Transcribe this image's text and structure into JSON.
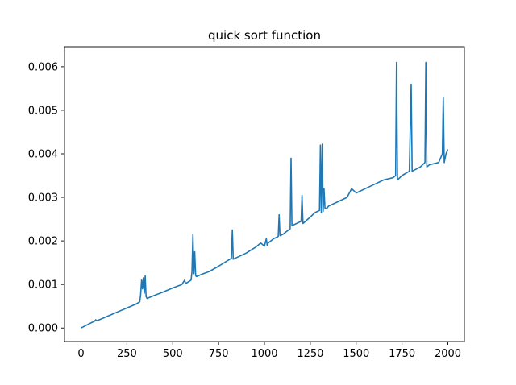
{
  "chart_data": {
    "type": "line",
    "title": "quick sort function",
    "xlabel": "",
    "ylabel": "",
    "xlim": [
      -90,
      2090
    ],
    "ylim": [
      -0.00031,
      0.00646
    ],
    "grid": false,
    "x_ticks": [
      0,
      250,
      500,
      750,
      1000,
      1250,
      1500,
      1750,
      2000
    ],
    "x_tick_labels": [
      "0",
      "250",
      "500",
      "750",
      "1000",
      "1250",
      "1500",
      "1750",
      "2000"
    ],
    "y_ticks": [
      0.0,
      0.001,
      0.002,
      0.003,
      0.004,
      0.005,
      0.006
    ],
    "y_tick_labels": [
      "0.000",
      "0.001",
      "0.002",
      "0.003",
      "0.004",
      "0.005",
      "0.006"
    ],
    "series": [
      {
        "color": "#1f77b4",
        "x": [
          0,
          50,
          75,
          80,
          85,
          100,
          150,
          200,
          250,
          300,
          320,
          325,
          330,
          335,
          340,
          345,
          350,
          355,
          360,
          400,
          450,
          500,
          550,
          565,
          570,
          600,
          605,
          610,
          615,
          620,
          625,
          630,
          650,
          700,
          750,
          800,
          820,
          825,
          830,
          840,
          900,
          950,
          980,
          1000,
          1010,
          1015,
          1020,
          1050,
          1075,
          1080,
          1085,
          1100,
          1140,
          1145,
          1150,
          1175,
          1200,
          1205,
          1210,
          1250,
          1275,
          1300,
          1305,
          1310,
          1315,
          1320,
          1325,
          1330,
          1340,
          1350,
          1400,
          1450,
          1475,
          1500,
          1550,
          1600,
          1650,
          1700,
          1715,
          1720,
          1725,
          1750,
          1790,
          1800,
          1805,
          1850,
          1875,
          1880,
          1885,
          1900,
          1950,
          1970,
          1975,
          1980,
          1990,
          2000
        ],
        "y": [
          0.0,
          0.00011,
          0.00016,
          0.00019,
          0.00017,
          0.00019,
          0.00028,
          0.00037,
          0.00046,
          0.00055,
          0.0006,
          0.00075,
          0.0011,
          0.0009,
          0.00115,
          0.0008,
          0.0012,
          0.00072,
          0.00068,
          0.00075,
          0.00083,
          0.00092,
          0.001,
          0.0011,
          0.00102,
          0.0011,
          0.0013,
          0.00215,
          0.00125,
          0.00175,
          0.0012,
          0.00118,
          0.00122,
          0.0013,
          0.00142,
          0.00155,
          0.0016,
          0.00225,
          0.00158,
          0.0016,
          0.00172,
          0.00185,
          0.00195,
          0.00188,
          0.00205,
          0.0019,
          0.00195,
          0.00205,
          0.0021,
          0.0026,
          0.00212,
          0.00215,
          0.00228,
          0.0039,
          0.00235,
          0.0024,
          0.00245,
          0.00305,
          0.0024,
          0.00255,
          0.00265,
          0.0027,
          0.0042,
          0.00265,
          0.00422,
          0.00268,
          0.0032,
          0.00275,
          0.00275,
          0.0028,
          0.0029,
          0.003,
          0.0032,
          0.0031,
          0.0032,
          0.0033,
          0.0034,
          0.00345,
          0.0035,
          0.0061,
          0.0034,
          0.0035,
          0.0036,
          0.0056,
          0.0036,
          0.0037,
          0.0038,
          0.0061,
          0.0037,
          0.00375,
          0.0038,
          0.004,
          0.0053,
          0.0038,
          0.004,
          0.0041
        ]
      }
    ]
  }
}
